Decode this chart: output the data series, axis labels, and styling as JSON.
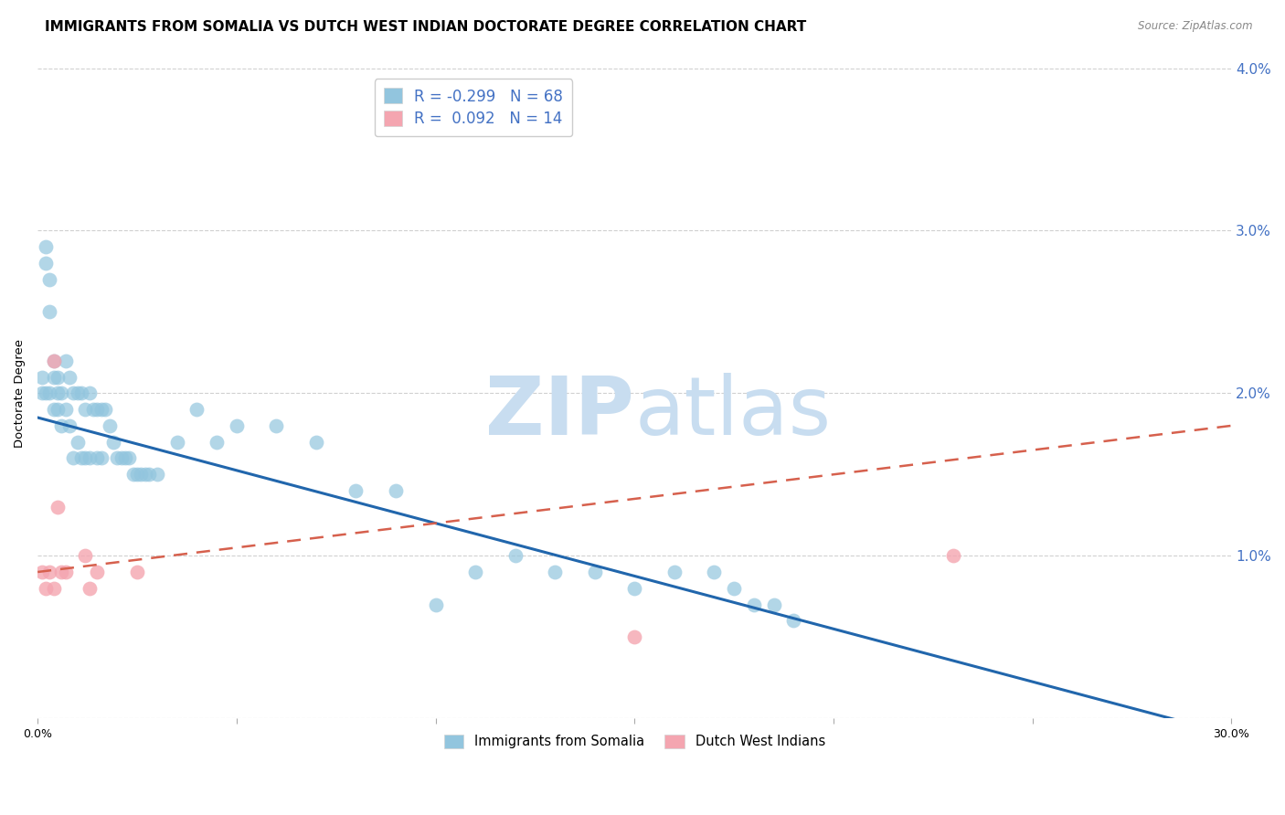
{
  "title": "IMMIGRANTS FROM SOMALIA VS DUTCH WEST INDIAN DOCTORATE DEGREE CORRELATION CHART",
  "source": "Source: ZipAtlas.com",
  "ylabel": "Doctorate Degree",
  "xlim": [
    0.0,
    0.3
  ],
  "ylim": [
    0.0,
    0.04
  ],
  "x_ticks": [
    0.0,
    0.05,
    0.1,
    0.15,
    0.2,
    0.25,
    0.3
  ],
  "y_ticks": [
    0.0,
    0.01,
    0.02,
    0.03,
    0.04
  ],
  "x_tick_labels": [
    "0.0%",
    "",
    "",
    "",
    "",
    "",
    "30.0%"
  ],
  "y_tick_labels_right": [
    "",
    "1.0%",
    "2.0%",
    "3.0%",
    "4.0%"
  ],
  "somalia_x": [
    0.001,
    0.001,
    0.002,
    0.002,
    0.002,
    0.003,
    0.003,
    0.003,
    0.004,
    0.004,
    0.004,
    0.005,
    0.005,
    0.005,
    0.006,
    0.006,
    0.007,
    0.007,
    0.008,
    0.008,
    0.009,
    0.009,
    0.01,
    0.01,
    0.011,
    0.011,
    0.012,
    0.012,
    0.013,
    0.013,
    0.014,
    0.015,
    0.015,
    0.016,
    0.016,
    0.017,
    0.018,
    0.019,
    0.02,
    0.021,
    0.022,
    0.023,
    0.024,
    0.025,
    0.026,
    0.027,
    0.028,
    0.03,
    0.035,
    0.04,
    0.045,
    0.05,
    0.06,
    0.07,
    0.08,
    0.09,
    0.1,
    0.11,
    0.12,
    0.13,
    0.14,
    0.15,
    0.16,
    0.17,
    0.175,
    0.18,
    0.185,
    0.19
  ],
  "somalia_y": [
    0.021,
    0.02,
    0.029,
    0.028,
    0.02,
    0.027,
    0.025,
    0.02,
    0.022,
    0.021,
    0.019,
    0.021,
    0.02,
    0.019,
    0.02,
    0.018,
    0.022,
    0.019,
    0.021,
    0.018,
    0.02,
    0.016,
    0.02,
    0.017,
    0.02,
    0.016,
    0.019,
    0.016,
    0.02,
    0.016,
    0.019,
    0.019,
    0.016,
    0.019,
    0.016,
    0.019,
    0.018,
    0.017,
    0.016,
    0.016,
    0.016,
    0.016,
    0.015,
    0.015,
    0.015,
    0.015,
    0.015,
    0.015,
    0.017,
    0.019,
    0.017,
    0.018,
    0.018,
    0.017,
    0.014,
    0.014,
    0.007,
    0.009,
    0.01,
    0.009,
    0.009,
    0.008,
    0.009,
    0.009,
    0.008,
    0.007,
    0.007,
    0.006
  ],
  "dwi_x": [
    0.001,
    0.002,
    0.003,
    0.004,
    0.004,
    0.005,
    0.006,
    0.007,
    0.012,
    0.013,
    0.015,
    0.15,
    0.23,
    0.025
  ],
  "dwi_y": [
    0.009,
    0.008,
    0.009,
    0.022,
    0.008,
    0.013,
    0.009,
    0.009,
    0.01,
    0.008,
    0.009,
    0.005,
    0.01,
    0.009
  ],
  "somalia_color": "#92c5de",
  "dwi_color": "#f4a5b0",
  "somalia_line_color": "#2166ac",
  "dwi_line_color": "#d6604d",
  "background_color": "#ffffff",
  "grid_color": "#d0d0d0",
  "R_somalia": -0.299,
  "N_somalia": 68,
  "R_dwi": 0.092,
  "N_dwi": 14,
  "watermark_zip": "ZIP",
  "watermark_atlas": "atlas",
  "watermark_color_zip": "#c8ddf0",
  "watermark_color_atlas": "#c8ddf0",
  "title_fontsize": 11,
  "axis_label_fontsize": 9.5,
  "tick_fontsize": 9,
  "legend_fontsize": 12,
  "right_tick_color": "#4472c4",
  "somalia_regression_start_y": 0.0185,
  "somalia_regression_end_y": -0.001,
  "dwi_regression_start_y": 0.009,
  "dwi_regression_end_y": 0.018
}
